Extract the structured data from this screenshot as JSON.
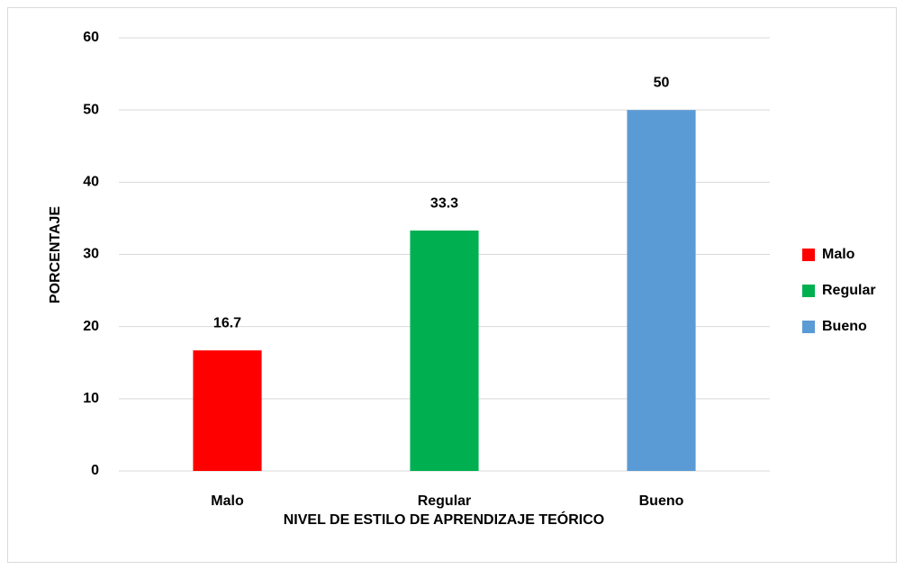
{
  "chart_data": {
    "type": "bar",
    "x_label": "NIVEL DE ESTILO DE APRENDIZAJE TEÓRICO",
    "y_label": "PORCENTAJE",
    "categories": [
      "Malo",
      "Regular",
      "Bueno"
    ],
    "values": [
      16.7,
      33.3,
      50
    ],
    "colors": [
      "#ff0000",
      "#00b050",
      "#5b9bd5"
    ],
    "ylim": [
      0,
      60
    ],
    "yticks": [
      0,
      10,
      20,
      30,
      40,
      50,
      60
    ],
    "grid": true,
    "legend": "right"
  }
}
